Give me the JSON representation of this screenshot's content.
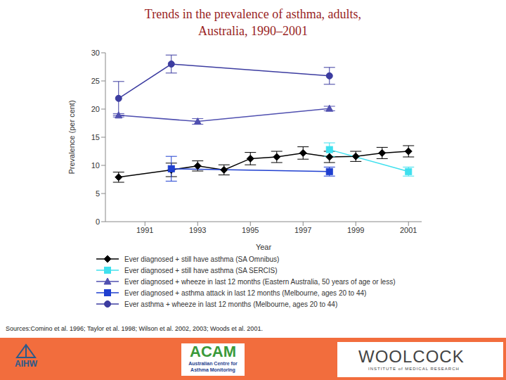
{
  "chart_data": {
    "type": "line",
    "title": "Trends in the prevalence of asthma, adults, Australia, 1990–2001",
    "x_label": "Year",
    "y_label": "Prevalence (per cent)",
    "xlim": [
      1989.5,
      2001.5
    ],
    "xticks": [
      1991,
      1993,
      1995,
      1997,
      1999,
      2001
    ],
    "ylim": [
      0,
      30
    ],
    "yticks": [
      0,
      5,
      10,
      15,
      20,
      25,
      30
    ],
    "grid": false,
    "legend": "bottom",
    "series": [
      {
        "name": "Ever diagnosed + still have asthma (SA Omnibus)",
        "color": "#000000",
        "marker": "diamond",
        "line_style": "solid",
        "x": [
          1990,
          1992,
          1993,
          1994,
          1995,
          1996,
          1997,
          1998,
          1999,
          2000,
          2001
        ],
        "values": [
          7.9,
          9.2,
          9.9,
          9.2,
          11.2,
          11.5,
          12.2,
          11.5,
          11.6,
          12.2,
          12.5
        ],
        "errors": [
          0.9,
          1.2,
          0.9,
          0.9,
          1.1,
          1.0,
          1.1,
          1.0,
          0.9,
          1.0,
          1.0
        ]
      },
      {
        "name": "Ever diagnosed + still have asthma (SA SERCIS)",
        "color": "#3fe0ee",
        "marker": "square",
        "line_style": "solid",
        "x": [
          1998,
          2001
        ],
        "values": [
          12.8,
          8.9
        ],
        "errors": [
          1.2,
          0.8
        ]
      },
      {
        "name": "Ever diagnosed + wheeze in last 12 months (Eastern Australia, 50 years of age or less)",
        "color": "#5050b0",
        "marker": "triangle",
        "line_style": "solid",
        "x": [
          1990,
          1993,
          1998
        ],
        "values": [
          18.9,
          17.8,
          20.1
        ],
        "errors": [
          0.3,
          0.5,
          0.4
        ]
      },
      {
        "name": "Ever diagnosed + asthma attack in last 12 months (Melbourne, ages 20 to 44)",
        "color": "#1f3fd0",
        "marker": "square",
        "line_style": "solid",
        "x": [
          1992,
          1998
        ],
        "values": [
          9.4,
          8.9
        ],
        "errors": [
          2.2,
          0.8
        ]
      },
      {
        "name": "Ever asthma + wheeze in last 12 months (Melbourne, ages 20 to 44)",
        "color": "#3c3ca0",
        "marker": "circle",
        "line_style": "solid",
        "x": [
          1990,
          1992,
          1998
        ],
        "values": [
          21.9,
          28.0,
          25.9
        ],
        "errors": [
          3.0,
          1.6,
          1.5
        ]
      }
    ],
    "source": "Sources:Comino et al. 1996; Taylor et al. 1998; Wilson et al. 2002, 2003; Woods et al. 2001.",
    "logos": [
      {
        "name": "AIHW"
      },
      {
        "name": "ACAM",
        "subtitle": "Australian Centre for Asthma Monitoring"
      },
      {
        "name": "WOOLCOCK",
        "subtitle": "INSTITUTE of MEDICAL RESEARCH"
      }
    ]
  }
}
